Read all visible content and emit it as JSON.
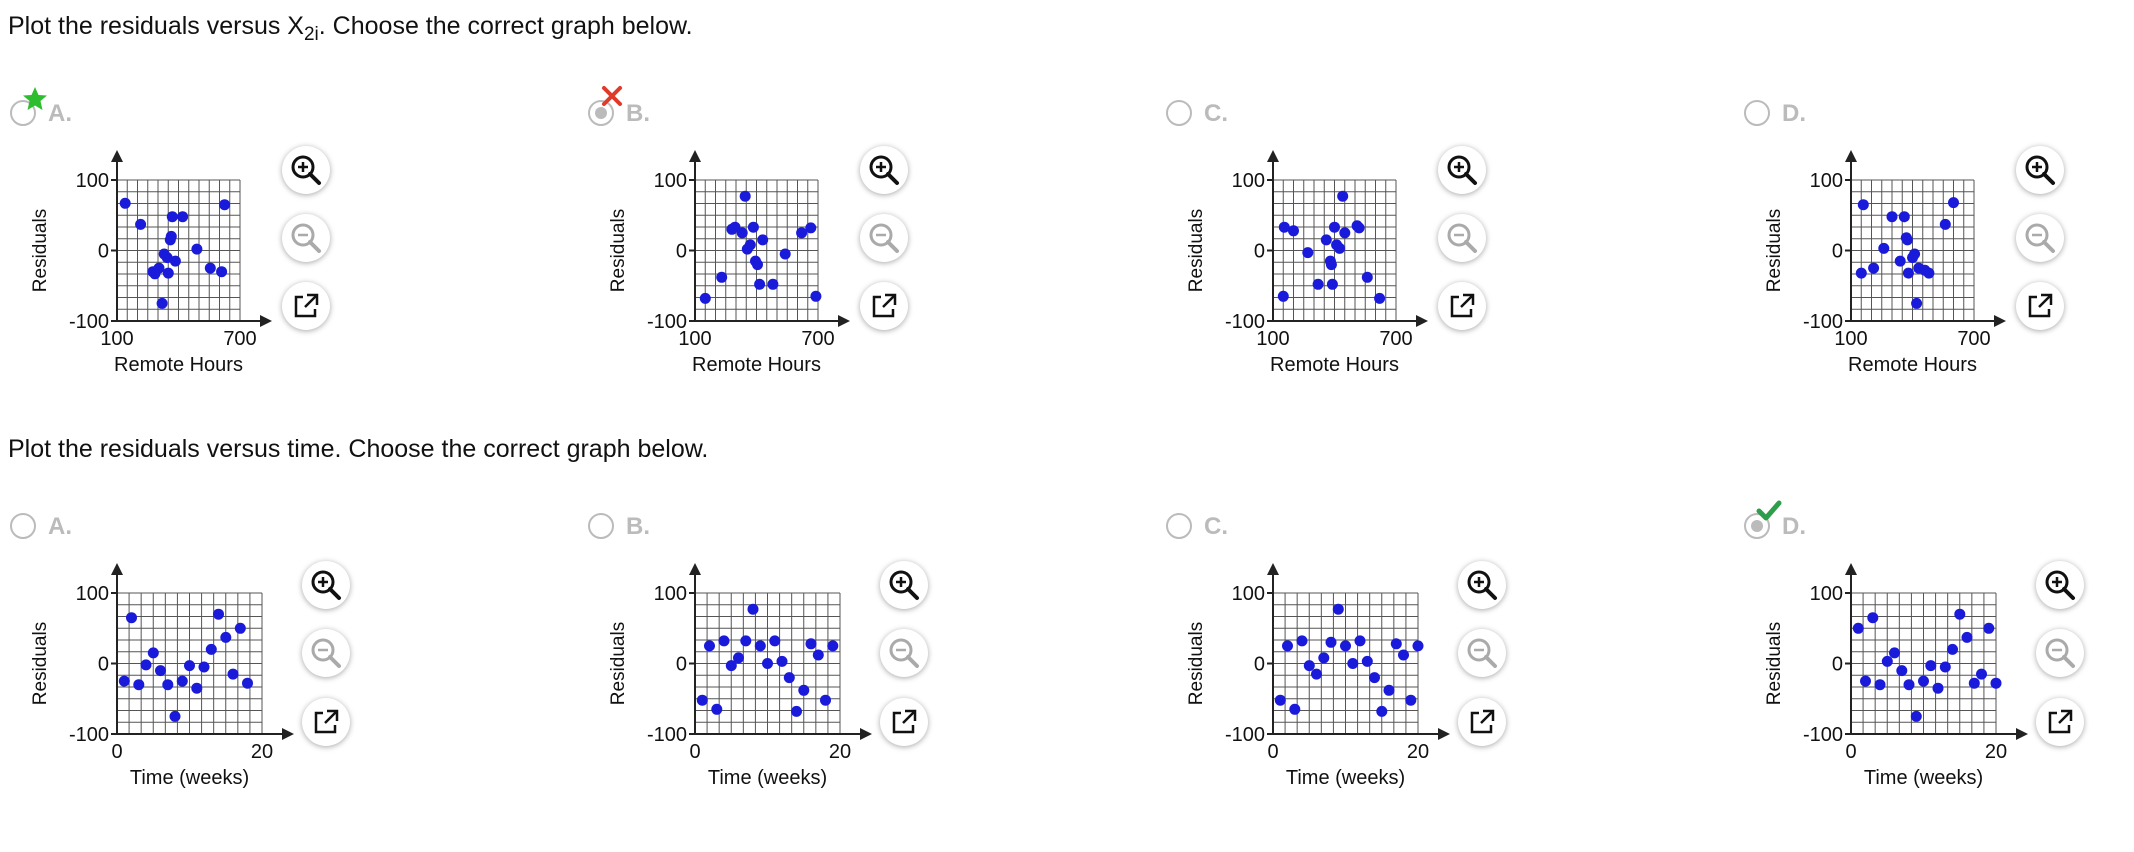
{
  "colors": {
    "point": "#1a1adb",
    "grid": "#555555",
    "disabled_text": "#bbbbbb",
    "star": "#2ebd2e",
    "cross": "#e03a2a",
    "check": "#2e9e4a"
  },
  "questions": [
    {
      "text_before": "Plot the residuals versus X",
      "text_sub": "2i",
      "text_after": ". Choose the correct graph below.",
      "xlabel": "Remote Hours",
      "ylabel": "Residuals",
      "xticks": [
        "100",
        "700"
      ],
      "yticks": [
        "100",
        "0",
        "-100"
      ],
      "options": [
        {
          "letter": "A.",
          "state": "correct-star",
          "points": [
            [
              140,
              67
            ],
            [
              215,
              37
            ],
            [
              275,
              -30
            ],
            [
              285,
              -33
            ],
            [
              305,
              -25
            ],
            [
              320,
              -75
            ],
            [
              330,
              -5
            ],
            [
              345,
              -10
            ],
            [
              350,
              -32
            ],
            [
              360,
              15
            ],
            [
              365,
              20
            ],
            [
              370,
              48
            ],
            [
              385,
              -15
            ],
            [
              420,
              48
            ],
            [
              490,
              2
            ],
            [
              555,
              -25
            ],
            [
              610,
              -30
            ],
            [
              625,
              65
            ]
          ]
        },
        {
          "letter": "B.",
          "state": "wrong-cross",
          "points": [
            [
              150,
              -68
            ],
            [
              230,
              -38
            ],
            [
              280,
              30
            ],
            [
              295,
              33
            ],
            [
              330,
              25
            ],
            [
              345,
              77
            ],
            [
              355,
              2
            ],
            [
              370,
              8
            ],
            [
              385,
              33
            ],
            [
              395,
              -15
            ],
            [
              405,
              -20
            ],
            [
              415,
              -48
            ],
            [
              430,
              15
            ],
            [
              480,
              -48
            ],
            [
              540,
              -5
            ],
            [
              620,
              25
            ],
            [
              665,
              32
            ],
            [
              690,
              -65
            ]
          ]
        },
        {
          "letter": "C.",
          "state": "unselected",
          "points": [
            [
              150,
              -65
            ],
            [
              155,
              33
            ],
            [
              200,
              28
            ],
            [
              270,
              -3
            ],
            [
              320,
              -48
            ],
            [
              360,
              15
            ],
            [
              380,
              -15
            ],
            [
              385,
              -20
            ],
            [
              390,
              -48
            ],
            [
              400,
              33
            ],
            [
              410,
              8
            ],
            [
              425,
              3
            ],
            [
              440,
              77
            ],
            [
              450,
              25
            ],
            [
              510,
              35
            ],
            [
              520,
              32
            ],
            [
              560,
              -38
            ],
            [
              620,
              -68
            ]
          ]
        },
        {
          "letter": "D.",
          "state": "unselected",
          "points": [
            [
              150,
              -32
            ],
            [
              160,
              65
            ],
            [
              210,
              -25
            ],
            [
              260,
              3
            ],
            [
              300,
              48
            ],
            [
              340,
              -15
            ],
            [
              360,
              48
            ],
            [
              370,
              18
            ],
            [
              375,
              15
            ],
            [
              380,
              -32
            ],
            [
              400,
              -10
            ],
            [
              410,
              -5
            ],
            [
              420,
              -75
            ],
            [
              430,
              -25
            ],
            [
              460,
              -28
            ],
            [
              480,
              -32
            ],
            [
              560,
              37
            ],
            [
              600,
              68
            ]
          ]
        }
      ]
    },
    {
      "text_before": "Plot the residuals versus time. Choose the correct graph below.",
      "text_sub": "",
      "text_after": "",
      "xlabel": "Time (weeks)",
      "ylabel": "Residuals",
      "xticks": [
        "0",
        "20"
      ],
      "yticks": [
        "100",
        "0",
        "-100"
      ],
      "options": [
        {
          "letter": "A.",
          "state": "unselected",
          "points": [
            [
              1,
              -25
            ],
            [
              2,
              65
            ],
            [
              3,
              -30
            ],
            [
              4,
              -2
            ],
            [
              5,
              15
            ],
            [
              6,
              -10
            ],
            [
              7,
              -30
            ],
            [
              8,
              -75
            ],
            [
              9,
              -25
            ],
            [
              10,
              -3
            ],
            [
              11,
              -35
            ],
            [
              12,
              -5
            ],
            [
              13,
              20
            ],
            [
              14,
              70
            ],
            [
              15,
              37
            ],
            [
              16,
              -15
            ],
            [
              17,
              50
            ],
            [
              18,
              -28
            ]
          ]
        },
        {
          "letter": "B.",
          "state": "unselected",
          "points": [
            [
              1,
              -52
            ],
            [
              2,
              25
            ],
            [
              3,
              -65
            ],
            [
              4,
              32
            ],
            [
              5,
              -3
            ],
            [
              6,
              8
            ],
            [
              7,
              32
            ],
            [
              8,
              77
            ],
            [
              9,
              25
            ],
            [
              10,
              0
            ],
            [
              11,
              32
            ],
            [
              12,
              3
            ],
            [
              13,
              -20
            ],
            [
              14,
              -68
            ],
            [
              15,
              -38
            ],
            [
              16,
              28
            ],
            [
              17,
              12
            ],
            [
              18,
              -52
            ],
            [
              19,
              25
            ]
          ]
        },
        {
          "letter": "C.",
          "state": "unselected",
          "points": [
            [
              1,
              -52
            ],
            [
              2,
              25
            ],
            [
              3,
              -65
            ],
            [
              4,
              32
            ],
            [
              5,
              -3
            ],
            [
              6,
              -15
            ],
            [
              7,
              8
            ],
            [
              8,
              30
            ],
            [
              9,
              77
            ],
            [
              10,
              25
            ],
            [
              11,
              0
            ],
            [
              12,
              32
            ],
            [
              13,
              3
            ],
            [
              14,
              -20
            ],
            [
              15,
              -68
            ],
            [
              16,
              -38
            ],
            [
              17,
              28
            ],
            [
              18,
              12
            ],
            [
              19,
              -52
            ],
            [
              20,
              25
            ]
          ]
        },
        {
          "letter": "D.",
          "state": "correct-check",
          "points": [
            [
              1,
              50
            ],
            [
              2,
              -25
            ],
            [
              3,
              65
            ],
            [
              4,
              -30
            ],
            [
              5,
              3
            ],
            [
              6,
              15
            ],
            [
              7,
              -10
            ],
            [
              8,
              -30
            ],
            [
              9,
              -75
            ],
            [
              10,
              -25
            ],
            [
              11,
              -3
            ],
            [
              12,
              -35
            ],
            [
              13,
              -5
            ],
            [
              14,
              20
            ],
            [
              15,
              70
            ],
            [
              16,
              37
            ],
            [
              17,
              -28
            ],
            [
              18,
              -15
            ],
            [
              19,
              50
            ],
            [
              20,
              -28
            ]
          ]
        }
      ]
    }
  ]
}
